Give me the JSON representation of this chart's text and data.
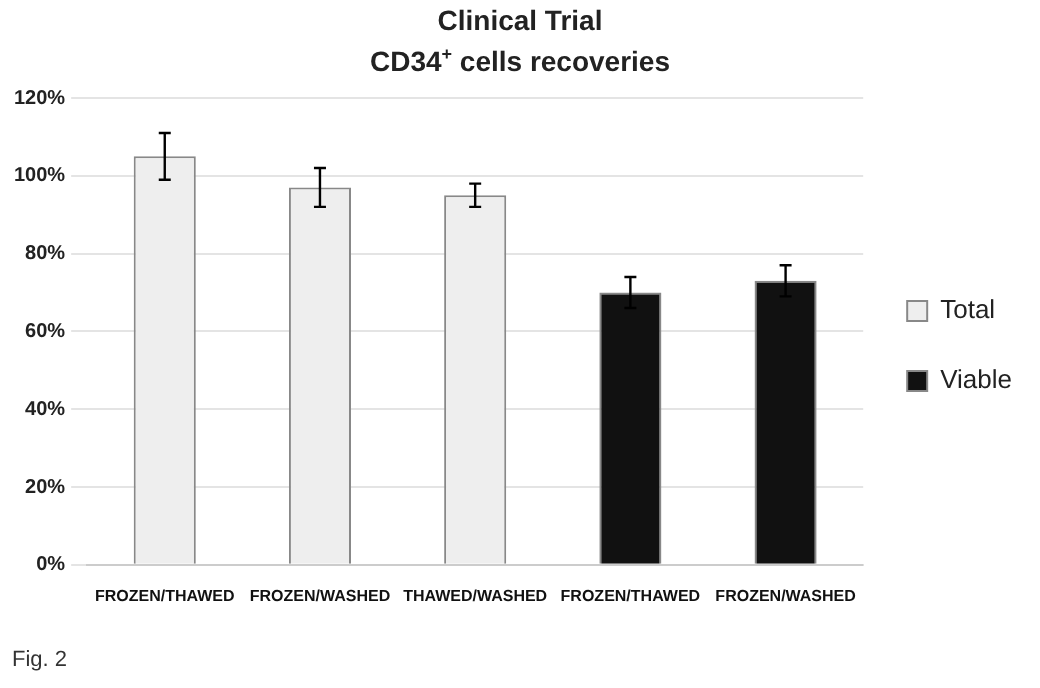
{
  "chart_data": {
    "type": "bar",
    "title": "Clinical Trial",
    "subtitle": "CD34$^{+}$ cells recoveries",
    "categories": [
      "FROZEN/THAWED",
      "FROZEN/WASHED",
      "THAWED/WASHED",
      "FROZEN/THAWED",
      "FROZEN/WASHED"
    ],
    "series": [
      {
        "name": "Total",
        "color": "#eeeeee",
        "values": [
          105,
          97,
          95,
          null,
          null
        ],
        "errors": [
          6,
          5,
          3,
          null,
          null
        ]
      },
      {
        "name": "Viable",
        "color": "#111111",
        "values": [
          null,
          null,
          null,
          70,
          73
        ],
        "errors": [
          null,
          null,
          null,
          4,
          4
        ]
      }
    ],
    "ylim": [
      0,
      120
    ],
    "yticks": [
      {
        "value": 0,
        "label": "0%"
      },
      {
        "value": 20,
        "label": "20%"
      },
      {
        "value": 40,
        "label": "40%"
      },
      {
        "value": 60,
        "label": "60%"
      },
      {
        "value": 80,
        "label": "80%"
      },
      {
        "value": 100,
        "label": "100%"
      },
      {
        "value": 120,
        "label": "120%"
      }
    ],
    "grid": "y",
    "legend": "right",
    "annotations": [
      "Fig. 2"
    ]
  }
}
